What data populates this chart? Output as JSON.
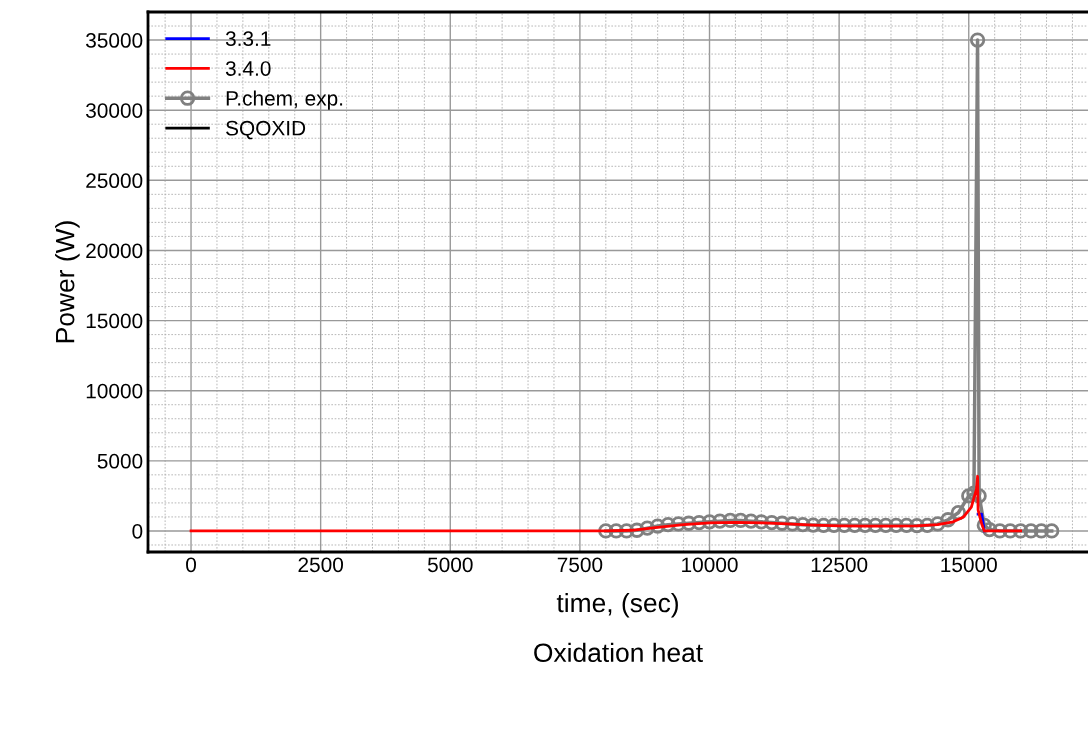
{
  "chart_data": {
    "type": "line",
    "title": "Oxidation heat",
    "xlabel": "time, (sec)",
    "ylabel": "Power (W)",
    "xlim": [
      -830,
      17300
    ],
    "ylim": [
      -1500,
      37000
    ],
    "xticks": [
      0,
      2500,
      5000,
      7500,
      10000,
      12500,
      15000
    ],
    "yticks": [
      0,
      5000,
      10000,
      15000,
      20000,
      25000,
      30000,
      35000
    ],
    "grid": true,
    "legend": "top left",
    "series": [
      {
        "name": "3.3.1",
        "color": "#0000ff",
        "marker": "none",
        "x": [
          15180,
          15250,
          15300
        ],
        "values": [
          1200,
          1200,
          0
        ]
      },
      {
        "name": "3.4.0",
        "color": "#ff0000",
        "marker": "none",
        "x": [
          0,
          8000,
          8500,
          9000,
          9500,
          10000,
          10500,
          11000,
          11500,
          12000,
          12500,
          13000,
          13500,
          14000,
          14400,
          14700,
          14900,
          15050,
          15150,
          15170,
          15180,
          15250,
          15300,
          16000
        ],
        "values": [
          0,
          0,
          50,
          250,
          450,
          580,
          620,
          580,
          500,
          420,
          370,
          350,
          350,
          370,
          450,
          650,
          1000,
          1700,
          3000,
          3900,
          1500,
          500,
          0,
          0
        ]
      },
      {
        "name": "P.chem, exp.",
        "color": "#808080",
        "marker": "circle",
        "x": [
          8000,
          8200,
          8400,
          8600,
          8800,
          9000,
          9200,
          9400,
          9600,
          9800,
          10000,
          10200,
          10400,
          10600,
          10800,
          11000,
          11200,
          11400,
          11600,
          11800,
          12000,
          12200,
          12400,
          12600,
          12800,
          13000,
          13200,
          13400,
          13600,
          13800,
          14000,
          14200,
          14400,
          14600,
          14800,
          15000,
          15100,
          15170,
          15200,
          15300,
          15400,
          15600,
          15800,
          16000,
          16200,
          16400,
          16600
        ],
        "values": [
          0,
          0,
          0,
          50,
          200,
          350,
          450,
          500,
          550,
          600,
          650,
          700,
          750,
          750,
          700,
          650,
          600,
          550,
          500,
          450,
          420,
          400,
          400,
          400,
          400,
          400,
          400,
          400,
          400,
          400,
          380,
          400,
          500,
          800,
          1300,
          2500,
          2700,
          35000,
          2500,
          400,
          100,
          0,
          0,
          0,
          0,
          0,
          0
        ]
      },
      {
        "name": "SQOXID",
        "color": "#000000",
        "marker": "none"
      }
    ]
  }
}
